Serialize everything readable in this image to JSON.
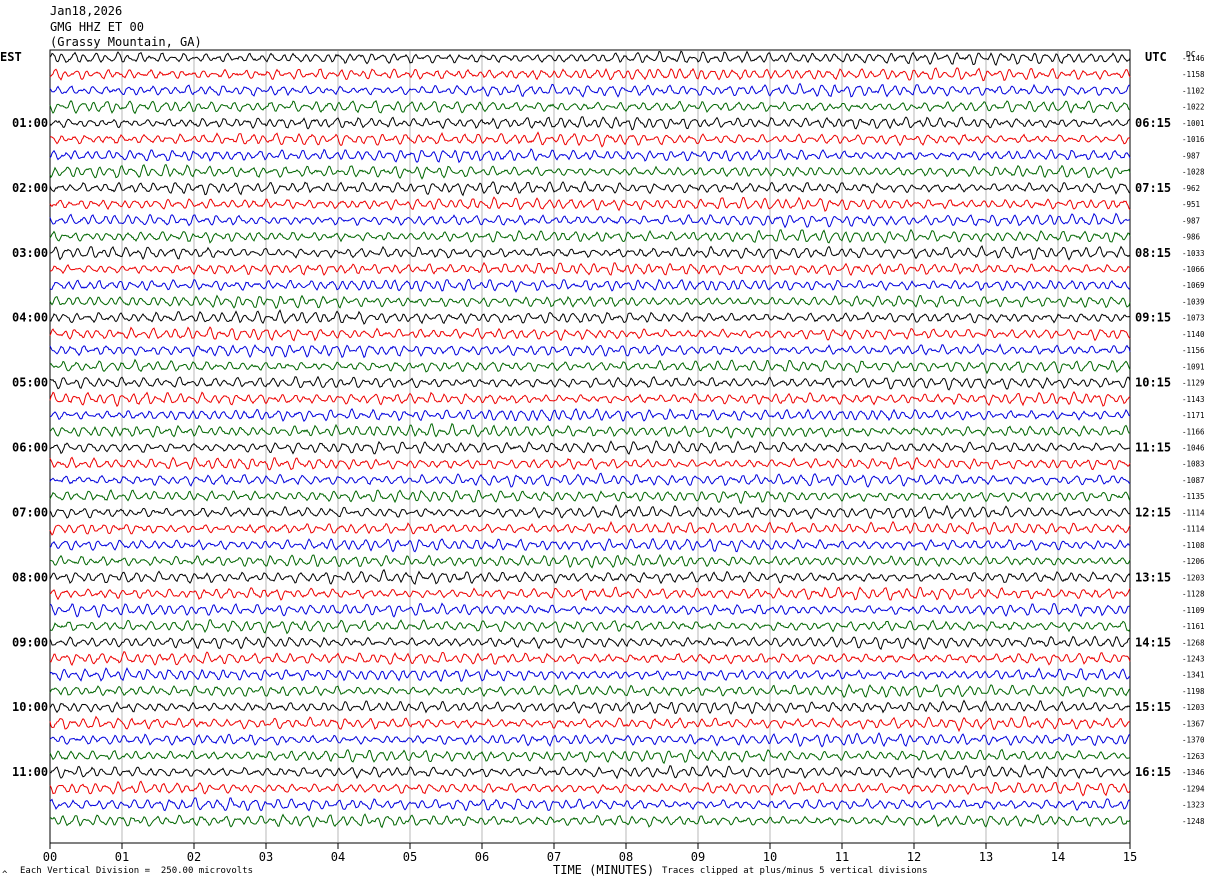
{
  "header": {
    "date": "Jan18,2026",
    "station": "GMG HHZ ET 00",
    "location": "(Grassy Mountain, GA)"
  },
  "left_timezone": "EST",
  "right_timezone": "UTC",
  "dc_label": "DC",
  "footer": {
    "scale_note": "Each Vertical Division =  250.00 microvolts",
    "clip_note": "Traces clipped at plus/minus 5 vertical divisions",
    "corner_mark": "^"
  },
  "colors": {
    "trace_cycle": [
      "#000000",
      "#ee0000",
      "#0000dd",
      "#006600"
    ],
    "grid": "#888888"
  },
  "chart_data": {
    "type": "line",
    "xlabel": "TIME (MINUTES)",
    "xlim": [
      0,
      15
    ],
    "x_ticks": [
      "00",
      "01",
      "02",
      "03",
      "04",
      "05",
      "06",
      "07",
      "08",
      "09",
      "10",
      "11",
      "12",
      "13",
      "14",
      "15"
    ],
    "row_minutes": 15,
    "rows": 48,
    "left_hour_labels": [
      "01:00",
      "02:00",
      "03:00",
      "04:00",
      "05:00",
      "06:00",
      "07:00",
      "08:00",
      "09:00",
      "10:00",
      "11:00"
    ],
    "right_hour_labels": [
      "06:15",
      "07:15",
      "08:15",
      "09:15",
      "10:15",
      "11:15",
      "12:15",
      "13:15",
      "14:15",
      "15:15",
      "16:15"
    ],
    "dc_offsets": [
      "-1146",
      "-1158",
      "-1102",
      "-1022",
      "-1001",
      "-1016",
      "-987",
      "-1028",
      "-962",
      "-951",
      "-987",
      "-986",
      "-1033",
      "-1066",
      "-1069",
      "-1039",
      "-1073",
      "-1140",
      "-1156",
      "-1091",
      "-1129",
      "-1143",
      "-1171",
      "-1166",
      "-1046",
      "-1083",
      "-1087",
      "-1135",
      "-1114",
      "-1114",
      "-1108",
      "-1206",
      "-1203",
      "-1128",
      "-1109",
      "-1161",
      "-1268",
      "-1243",
      "-1341",
      "-1198",
      "-1203",
      "-1367",
      "-1370",
      "-1263",
      "-1346",
      "-1294",
      "-1323",
      "-1248"
    ]
  }
}
